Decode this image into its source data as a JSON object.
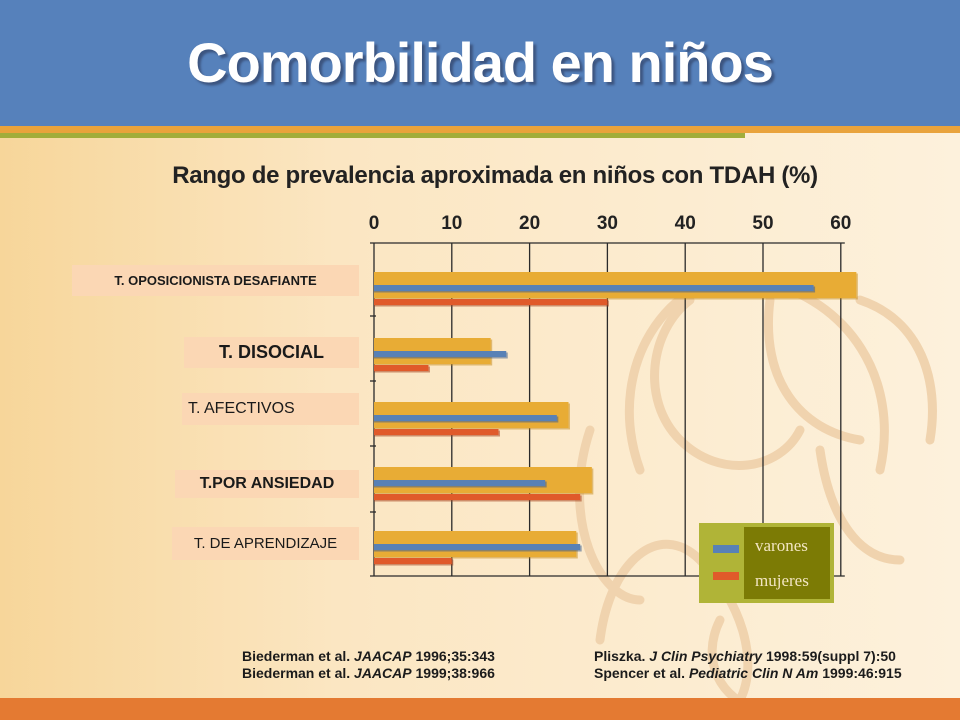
{
  "slide": {
    "title": "Comorbilidad en niños",
    "colors": {
      "header": "#5681bb",
      "background": "#fbe9c9",
      "accent_orange": "#e9a33c",
      "accent_olive": "#a2ad3a",
      "bottom_bar": "#e47a32"
    }
  },
  "chart_data": {
    "type": "bar",
    "orientation": "horizontal",
    "title": "Rango de prevalencia aproximada en niños con TDAH (%)",
    "xlim": [
      0,
      60
    ],
    "xticks": [
      0,
      10,
      20,
      30,
      40,
      50,
      60
    ],
    "grid": true,
    "legend_position": "bottom-right",
    "categories": [
      "T. OPOSICIONISTA DESAFIANTE",
      "T. DISOCIAL",
      "T. AFECTIVOS",
      "T.POR ANSIEDAD",
      "T. DE APRENDIZAJE"
    ],
    "series": [
      {
        "values": [
          62,
          15,
          25,
          28,
          26
        ],
        "color": "#e8ac35"
      },
      {
        "name": "varones",
        "values": [
          56.5,
          17,
          23.5,
          22,
          26.5
        ],
        "color": "#5881b6"
      },
      {
        "name": "mujeres",
        "values": [
          30,
          7,
          16,
          26.5,
          10
        ],
        "color": "#e05a2a"
      }
    ]
  },
  "references": {
    "left": [
      {
        "author": "Biederman et al. ",
        "journal": "JAACAP",
        "detail": " 1996;35:343"
      },
      {
        "author": "Biederman et al. ",
        "journal": "JAACAP",
        "detail": " 1999;38:966"
      }
    ],
    "right": [
      {
        "author": "Pliszka. ",
        "journal": "J Clin Psychiatry",
        "detail": " 1998:59(suppl 7):50"
      },
      {
        "author": "Spencer et al. ",
        "journal": "Pediatric Clin N Am",
        "detail": " 1999:46:915"
      }
    ]
  }
}
